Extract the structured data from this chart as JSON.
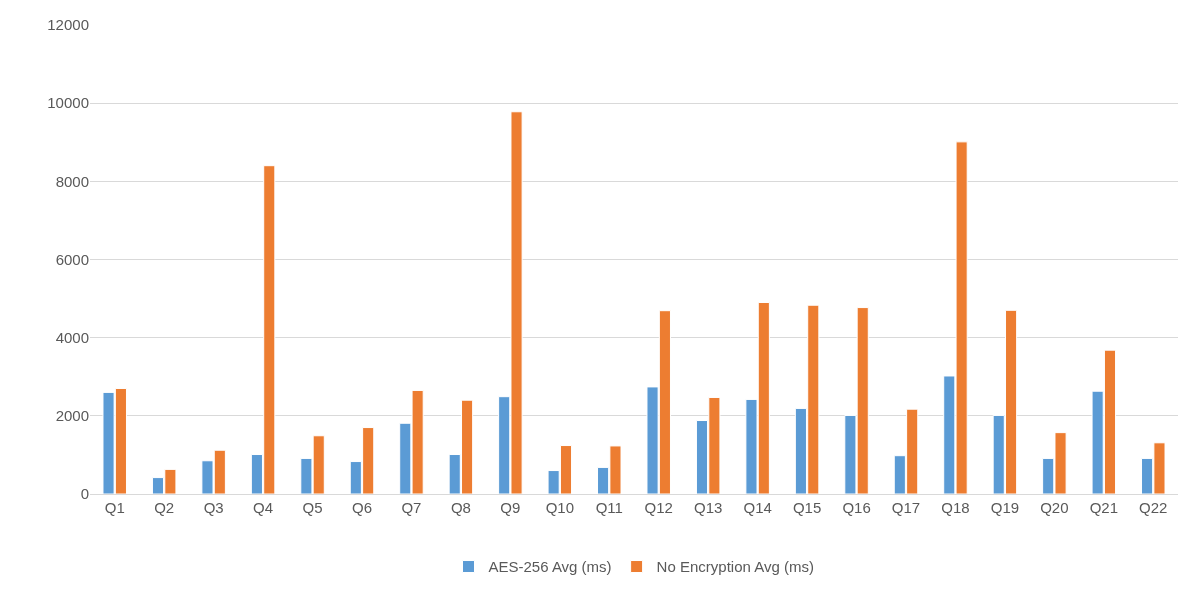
{
  "chart_data": {
    "type": "bar",
    "categories": [
      "Q1",
      "Q2",
      "Q3",
      "Q4",
      "Q5",
      "Q6",
      "Q7",
      "Q8",
      "Q9",
      "Q10",
      "Q11",
      "Q12",
      "Q13",
      "Q14",
      "Q15",
      "Q16",
      "Q17",
      "Q18",
      "Q19",
      "Q20",
      "Q21",
      "Q22"
    ],
    "series": [
      {
        "name": "AES-256 Avg (ms)",
        "color": "#5b9bd5",
        "values": [
          2600,
          420,
          850,
          1010,
          910,
          830,
          1810,
          1010,
          2490,
          600,
          680,
          2740,
          1880,
          2420,
          2190,
          2010,
          980,
          3020,
          2010,
          910,
          2630,
          910
        ]
      },
      {
        "name": "No Encryption Avg (ms)",
        "color": "#ed7d31",
        "values": [
          2700,
          630,
          1120,
          8400,
          1490,
          1700,
          2650,
          2400,
          9780,
          1240,
          1230,
          4690,
          2470,
          4900,
          4830,
          4770,
          2170,
          9010,
          4700,
          1570,
          3680,
          1310
        ]
      }
    ],
    "ylim": [
      0,
      12000
    ],
    "yticks": [
      0,
      2000,
      4000,
      6000,
      8000,
      10000,
      12000
    ],
    "grid": "y",
    "legend": "bottom"
  }
}
